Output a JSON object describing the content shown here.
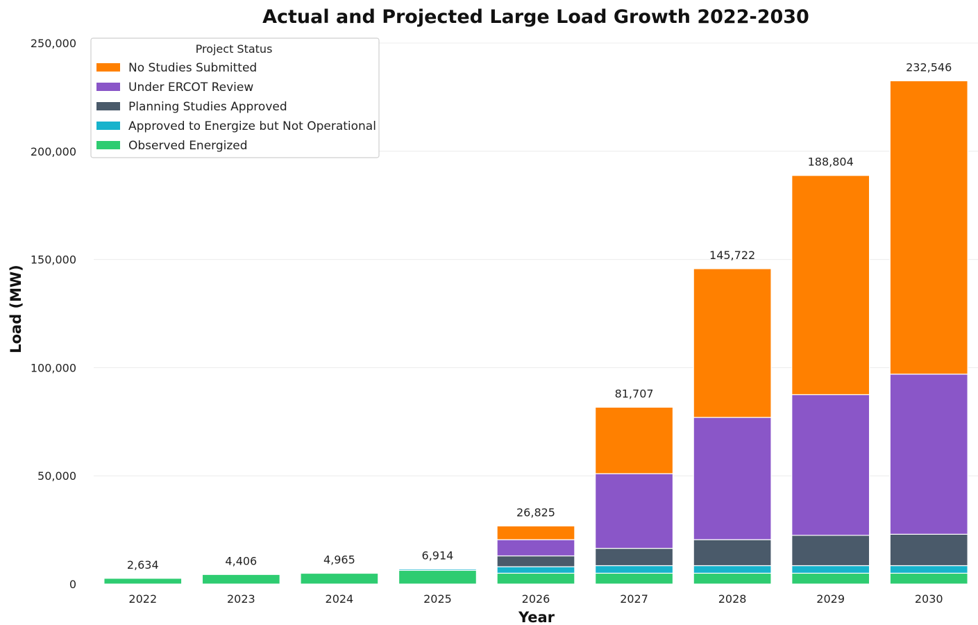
{
  "chart_data": {
    "type": "bar",
    "stacked": true,
    "title": "Actual and Projected Large Load Growth 2022-2030",
    "xlabel": "Year",
    "ylabel": "Load (MW)",
    "ylim": [
      0,
      250000
    ],
    "yticks": [
      0,
      50000,
      100000,
      150000,
      200000,
      250000
    ],
    "ytick_labels": [
      "0",
      "50,000",
      "100,000",
      "150,000",
      "200,000",
      "250,000"
    ],
    "grid": true,
    "legend": {
      "title": "Project Status",
      "placement": "top-left"
    },
    "categories": [
      "2022",
      "2023",
      "2024",
      "2025",
      "2026",
      "2027",
      "2028",
      "2029",
      "2030"
    ],
    "series": [
      {
        "name": "Observed Energized",
        "color": "#2ecc71",
        "values": [
          2634,
          4406,
          4965,
          6300,
          5000,
          5000,
          5000,
          5000,
          5000
        ]
      },
      {
        "name": "Approved to Energize but Not Operational",
        "color": "#17b3cc",
        "values": [
          0,
          0,
          0,
          614,
          3000,
          3500,
          3500,
          3500,
          3500
        ]
      },
      {
        "name": "Planning Studies Approved",
        "color": "#4a5a6a",
        "values": [
          0,
          0,
          0,
          0,
          5000,
          8000,
          12000,
          14000,
          14500
        ]
      },
      {
        "name": "Under ERCOT Review",
        "color": "#8a56c8",
        "values": [
          0,
          0,
          0,
          0,
          7500,
          34500,
          56500,
          65000,
          74000
        ]
      },
      {
        "name": "No Studies Submitted",
        "color": "#ff8000",
        "values": [
          0,
          0,
          0,
          0,
          6325,
          30707,
          68722,
          101304,
          135546
        ]
      }
    ],
    "totals": [
      2634,
      4406,
      4965,
      6914,
      26825,
      81707,
      145722,
      188804,
      232546
    ],
    "total_labels": [
      "2,634",
      "4,406",
      "4,965",
      "6,914",
      "26,825",
      "81,707",
      "145,722",
      "188,804",
      "232,546"
    ]
  }
}
